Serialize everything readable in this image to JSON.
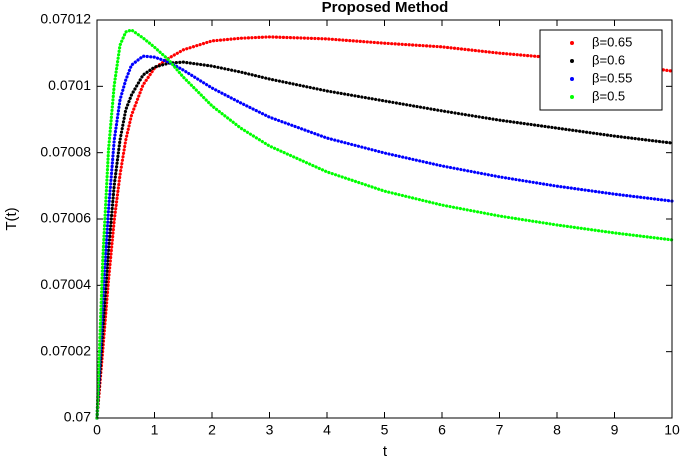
{
  "chart_data": {
    "type": "line",
    "title": "Proposed Method",
    "x_label": "t",
    "y_label": "T(t)",
    "x": [
      0,
      0.1,
      0.2,
      0.3,
      0.4,
      0.5,
      0.6,
      0.8,
      1,
      1.25,
      1.5,
      2,
      2.5,
      3,
      4,
      5,
      6,
      7,
      8,
      9,
      10
    ],
    "series": [
      {
        "name": "β=0.65",
        "color": "#ff0000",
        "values": [
          0.07,
          0.0700205,
          0.0700416,
          0.0700597,
          0.0700733,
          0.0700838,
          0.0700913,
          0.0701004,
          0.0701055,
          0.0701085,
          0.070111,
          0.0701137,
          0.0701145,
          0.0701149,
          0.0701143,
          0.070113,
          0.0701119,
          0.07011,
          0.0701085,
          0.070107,
          0.0701046
        ]
      },
      {
        "name": "β=0.6",
        "color": "#000000",
        "values": [
          0.07,
          0.0700265,
          0.0700506,
          0.0700702,
          0.0700838,
          0.0700929,
          0.0700974,
          0.0701034,
          0.0701058,
          0.070107,
          0.0701073,
          0.0701061,
          0.0701043,
          0.0701022,
          0.0700986,
          0.0700956,
          0.0700926,
          0.0700898,
          0.0700874,
          0.070085,
          0.0700829
        ]
      },
      {
        "name": "β=0.55",
        "color": "#0000ff",
        "values": [
          0.07,
          0.0700356,
          0.0700627,
          0.0700838,
          0.0700959,
          0.0701019,
          0.0701064,
          0.0701091,
          0.0701088,
          0.0701073,
          0.0701049,
          0.0700995,
          0.070095,
          0.0700907,
          0.0700844,
          0.0700799,
          0.070076,
          0.0700727,
          0.0700699,
          0.0700675,
          0.0700654
        ]
      },
      {
        "name": "β=0.5",
        "color": "#00ff00",
        "values": [
          0.07,
          0.0700476,
          0.0700808,
          0.0701004,
          0.0701124,
          0.0701164,
          0.070117,
          0.0701146,
          0.0701118,
          0.0701079,
          0.0701028,
          0.0700941,
          0.0700874,
          0.070082,
          0.0700742,
          0.0700684,
          0.0700642,
          0.0700609,
          0.0700582,
          0.0700558,
          0.0700537
        ]
      }
    ],
    "xlim": [
      0,
      10
    ],
    "xticks": [
      0,
      1,
      2,
      3,
      4,
      5,
      6,
      7,
      8,
      9,
      10
    ],
    "ylim": [
      0.07,
      0.07012
    ],
    "yticks": [
      0.07,
      0.07002,
      0.07004,
      0.07006,
      0.07008,
      0.0701,
      0.07012
    ],
    "grid": false,
    "legend": "top-right"
  }
}
